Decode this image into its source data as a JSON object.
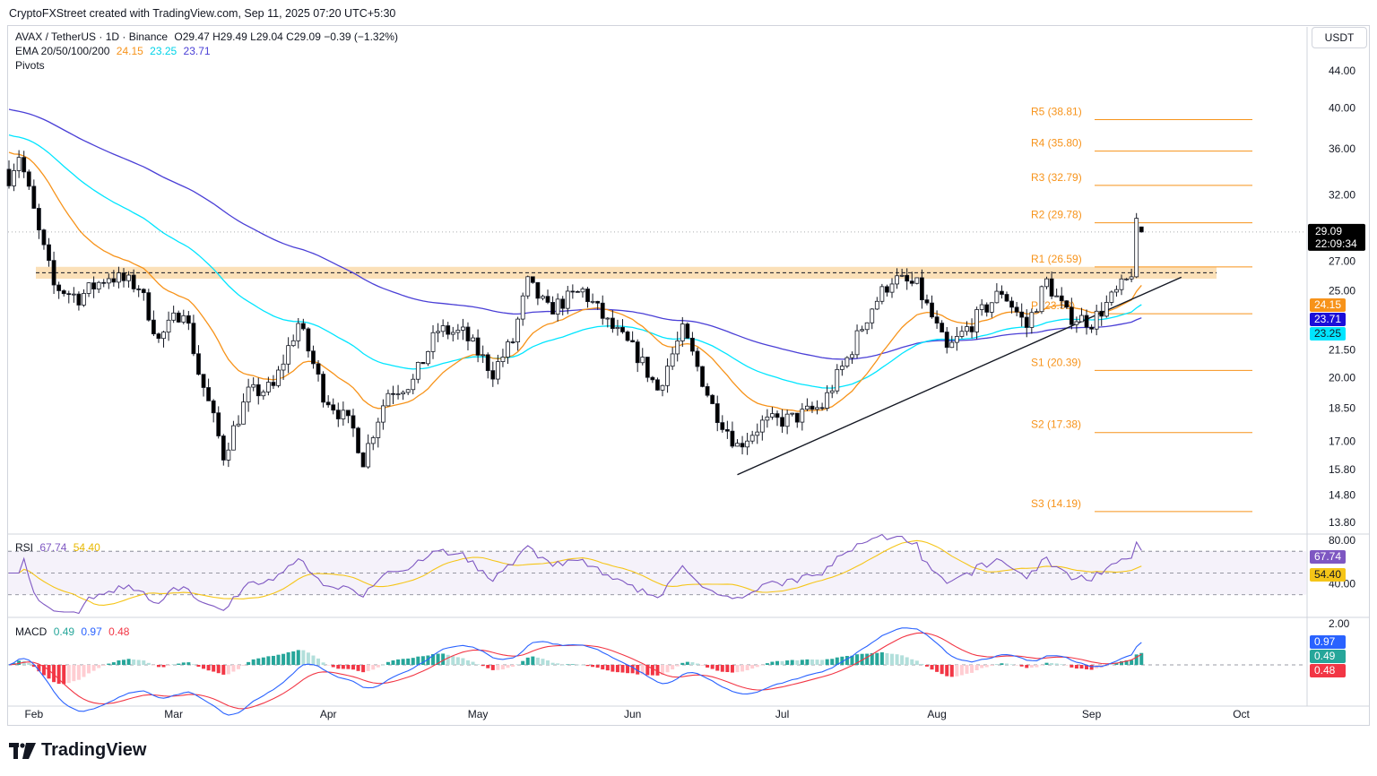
{
  "attribution": "CryptoFXStreet created with TradingView.com, Sep 11, 2025 07:20 UTC+5:30",
  "currency_button": "USDT",
  "brand": "TradingView",
  "legend": {
    "symbol": "AVAX / TetherUS · 1D · Binance",
    "ohlc": "O29.47  H29.49  L29.04  C29.09  −0.39 (−1.32%)",
    "ema_label": "EMA 20/50/100/200",
    "ema20": "24.15",
    "ema50": "23.25",
    "ema100": "23.71",
    "pivots_label": "Pivots",
    "rsi_label": "RSI",
    "rsi_value": "67.74",
    "rsi_ma": "54.40",
    "macd_label": "MACD",
    "macd_hist": "0.49",
    "macd_line": "0.97",
    "macd_signal": "0.48"
  },
  "colors": {
    "up": "#ffffff",
    "down": "#000000",
    "ema20": "#f7931a",
    "ema50": "#00e5ff",
    "ema100": "#4a3fd6",
    "pivot": "#f7931a",
    "rsi": "#7e57c2",
    "rsi_ma": "#f5c518",
    "macd": "#2962ff",
    "signal": "#f23645",
    "hist_pos": "#26a69a",
    "hist_neg": "#f23645"
  },
  "chart_data": [
    {
      "type": "candlestick",
      "scale": "log",
      "y_ticks": [
        "44.00",
        "40.00",
        "36.00",
        "32.00",
        "29.09",
        "27.00",
        "25.00",
        "21.50",
        "20.00",
        "18.50",
        "17.00",
        "15.80",
        "14.80",
        "13.80"
      ],
      "y_tick_values": [
        44,
        40,
        36,
        32,
        27,
        25,
        21.5,
        20,
        18.5,
        17,
        15.8,
        14.8,
        13.8
      ],
      "x_labels": [
        "Feb",
        "Mar",
        "Apr",
        "May",
        "Jun",
        "Jul",
        "Aug",
        "Sep",
        "Oct"
      ],
      "last_price": "29.09",
      "countdown": "22:09:34",
      "price_labels": [
        "24.15",
        "23.71",
        "23.25"
      ],
      "pivots": [
        {
          "label": "R5 (38.81)",
          "value": 38.81
        },
        {
          "label": "R4 (35.80)",
          "value": 35.8
        },
        {
          "label": "R3 (32.79)",
          "value": 32.79
        },
        {
          "label": "R2 (29.78)",
          "value": 29.78
        },
        {
          "label": "R1 (26.59)",
          "value": 26.59
        },
        {
          "label": "P (23.58)",
          "value": 23.58
        },
        {
          "label": "S1 (20.39)",
          "value": 20.39
        },
        {
          "label": "S2 (17.38)",
          "value": 17.38
        },
        {
          "label": "S3 (14.19)",
          "value": 14.19
        }
      ],
      "resistance_zone": [
        25.8,
        26.6
      ],
      "resistance_level": 26.2,
      "trendline": [
        {
          "x": "2025-06-22",
          "y": 15.6
        },
        {
          "x": "2025-09-19",
          "y": 25.9
        }
      ],
      "ohlc_waypoints": [
        {
          "date": "2025-01-27",
          "close": 33.5
        },
        {
          "date": "2025-01-29",
          "close": 35.5
        },
        {
          "date": "2025-02-02",
          "close": 29.0
        },
        {
          "date": "2025-02-05",
          "close": 25.3
        },
        {
          "date": "2025-02-10",
          "close": 24.6
        },
        {
          "date": "2025-02-16",
          "close": 26.0
        },
        {
          "date": "2025-02-22",
          "close": 25.3
        },
        {
          "date": "2025-02-26",
          "close": 22.0
        },
        {
          "date": "2025-03-03",
          "close": 24.0
        },
        {
          "date": "2025-03-06",
          "close": 20.3
        },
        {
          "date": "2025-03-11",
          "close": 16.4
        },
        {
          "date": "2025-03-16",
          "close": 19.2
        },
        {
          "date": "2025-03-21",
          "close": 19.5
        },
        {
          "date": "2025-03-26",
          "close": 23.0
        },
        {
          "date": "2025-03-31",
          "close": 19.2
        },
        {
          "date": "2025-04-06",
          "close": 17.5
        },
        {
          "date": "2025-04-08",
          "close": 16.2
        },
        {
          "date": "2025-04-13",
          "close": 19.3
        },
        {
          "date": "2025-04-18",
          "close": 19.8
        },
        {
          "date": "2025-04-23",
          "close": 22.6
        },
        {
          "date": "2025-04-28",
          "close": 22.4
        },
        {
          "date": "2025-05-04",
          "close": 20.3
        },
        {
          "date": "2025-05-08",
          "close": 22.0
        },
        {
          "date": "2025-05-11",
          "close": 25.5
        },
        {
          "date": "2025-05-15",
          "close": 23.8
        },
        {
          "date": "2025-05-22",
          "close": 25.0
        },
        {
          "date": "2025-05-27",
          "close": 23.0
        },
        {
          "date": "2025-06-02",
          "close": 21.2
        },
        {
          "date": "2025-06-06",
          "close": 19.4
        },
        {
          "date": "2025-06-11",
          "close": 22.5
        },
        {
          "date": "2025-06-17",
          "close": 18.6
        },
        {
          "date": "2025-06-22",
          "close": 16.8
        },
        {
          "date": "2025-06-27",
          "close": 17.8
        },
        {
          "date": "2025-07-03",
          "close": 18.0
        },
        {
          "date": "2025-07-09",
          "close": 18.6
        },
        {
          "date": "2025-07-14",
          "close": 21.0
        },
        {
          "date": "2025-07-19",
          "close": 24.0
        },
        {
          "date": "2025-07-23",
          "close": 25.8
        },
        {
          "date": "2025-07-28",
          "close": 25.3
        },
        {
          "date": "2025-08-03",
          "close": 21.4
        },
        {
          "date": "2025-08-08",
          "close": 23.0
        },
        {
          "date": "2025-08-14",
          "close": 25.0
        },
        {
          "date": "2025-08-19",
          "close": 22.8
        },
        {
          "date": "2025-08-23",
          "close": 25.6
        },
        {
          "date": "2025-08-27",
          "close": 23.5
        },
        {
          "date": "2025-09-01",
          "close": 23.1
        },
        {
          "date": "2025-09-05",
          "close": 24.5
        },
        {
          "date": "2025-09-08",
          "close": 25.6
        },
        {
          "date": "2025-09-09",
          "close": 26.3
        },
        {
          "date": "2025-09-10",
          "close": 29.47
        },
        {
          "date": "2025-09-11",
          "open": 29.47,
          "high": 29.49,
          "low": 29.04,
          "close": 29.09
        }
      ]
    },
    {
      "type": "line",
      "name": "RSI",
      "y_ticks": [
        "80.00",
        "40.00"
      ],
      "y_tick_values": [
        80,
        40
      ],
      "bands": [
        70,
        50,
        30
      ],
      "values_label": [
        "67.74",
        "54.40"
      ]
    },
    {
      "type": "bar",
      "name": "MACD",
      "y_ticks": [
        "2.00"
      ],
      "y_tick_values": [
        2
      ],
      "values_label": [
        "0.97",
        "0.49",
        "0.48"
      ]
    }
  ]
}
